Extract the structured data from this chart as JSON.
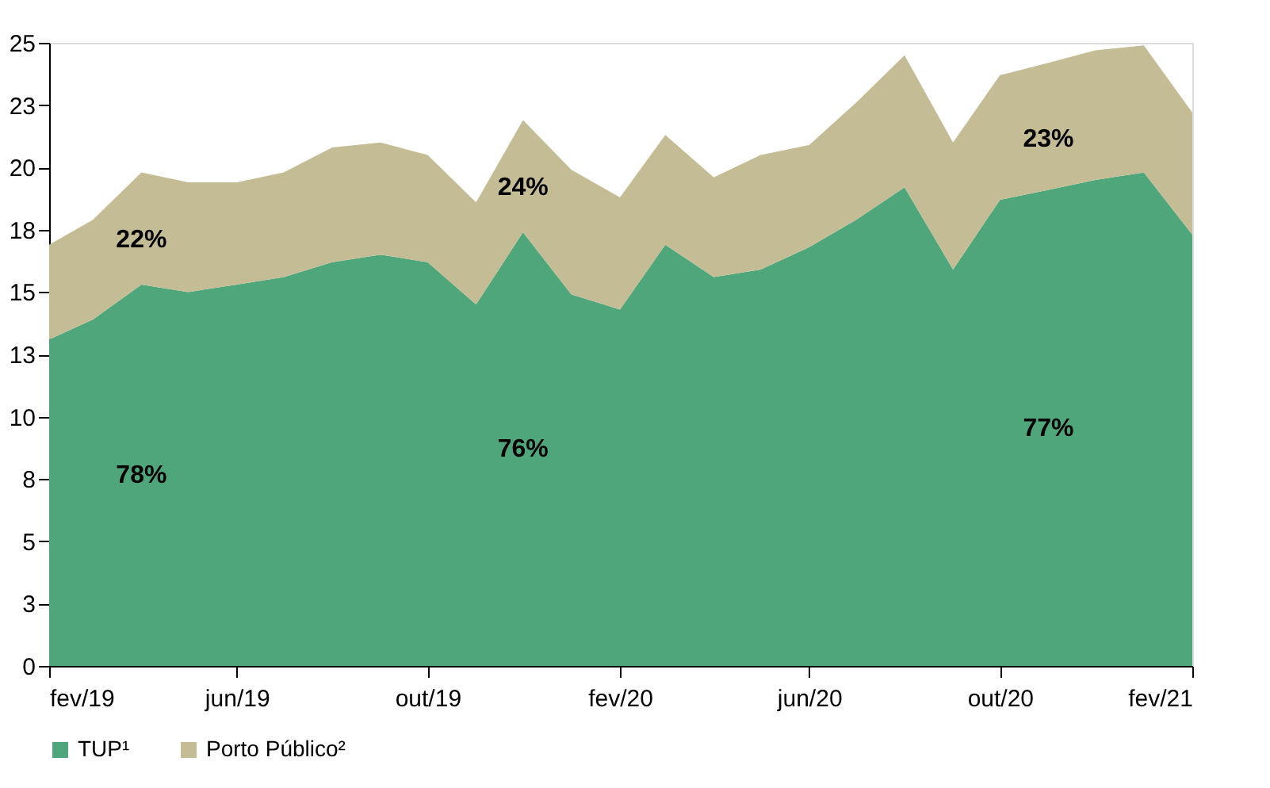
{
  "chart_data": {
    "type": "area",
    "stacked": true,
    "x": [
      "2019-02",
      "2019-03",
      "2019-04",
      "2019-05",
      "2019-06",
      "2019-07",
      "2019-08",
      "2019-09",
      "2019-10",
      "2019-11",
      "2019-12",
      "2020-01",
      "2020-02",
      "2020-03",
      "2020-04",
      "2020-05",
      "2020-06",
      "2020-07",
      "2020-08",
      "2020-09",
      "2020-10",
      "2020-11",
      "2020-12",
      "2021-01",
      "2021-02"
    ],
    "series": [
      {
        "name": "TUP¹",
        "color": "#4fa67a",
        "values": [
          13.1,
          13.9,
          15.3,
          15.0,
          15.3,
          15.6,
          16.2,
          16.5,
          16.2,
          14.5,
          17.4,
          14.9,
          14.3,
          16.9,
          15.6,
          15.9,
          16.8,
          17.9,
          19.2,
          15.9,
          18.7,
          19.1,
          19.5,
          19.8,
          17.3
        ]
      },
      {
        "name": "Porto Público²",
        "color": "#c4bc94",
        "values": [
          3.8,
          4.0,
          4.5,
          4.4,
          4.1,
          4.2,
          4.6,
          4.5,
          4.3,
          4.1,
          4.5,
          5.0,
          4.5,
          4.4,
          4.0,
          4.6,
          4.1,
          4.7,
          5.3,
          5.1,
          5.0,
          5.1,
          5.2,
          5.1,
          4.9
        ]
      }
    ],
    "xlim": [
      "2019-02",
      "2021-02"
    ],
    "xticks": [
      {
        "value": "2019-02",
        "label": "fev/19"
      },
      {
        "value": "2019-06",
        "label": "jun/19"
      },
      {
        "value": "2019-10",
        "label": "out/19"
      },
      {
        "value": "2020-02",
        "label": "fev/20"
      },
      {
        "value": "2020-06",
        "label": "jun/20"
      },
      {
        "value": "2020-10",
        "label": "out/20"
      },
      {
        "value": "2021-02",
        "label": "fev/21"
      }
    ],
    "ylim": [
      0,
      25
    ],
    "yticks": [
      0,
      {
        "value": 2.5,
        "label": "3"
      },
      5,
      {
        "value": 7.5,
        "label": "8"
      },
      10,
      {
        "value": 12.5,
        "label": "13"
      },
      15,
      {
        "value": 17.5,
        "label": "18"
      },
      20,
      {
        "value": 22.5,
        "label": "23"
      },
      25
    ],
    "annotations": [
      "22%",
      "78%",
      "24%",
      "76%",
      "23%",
      "77%"
    ],
    "grid": false,
    "legend": "bottom"
  }
}
